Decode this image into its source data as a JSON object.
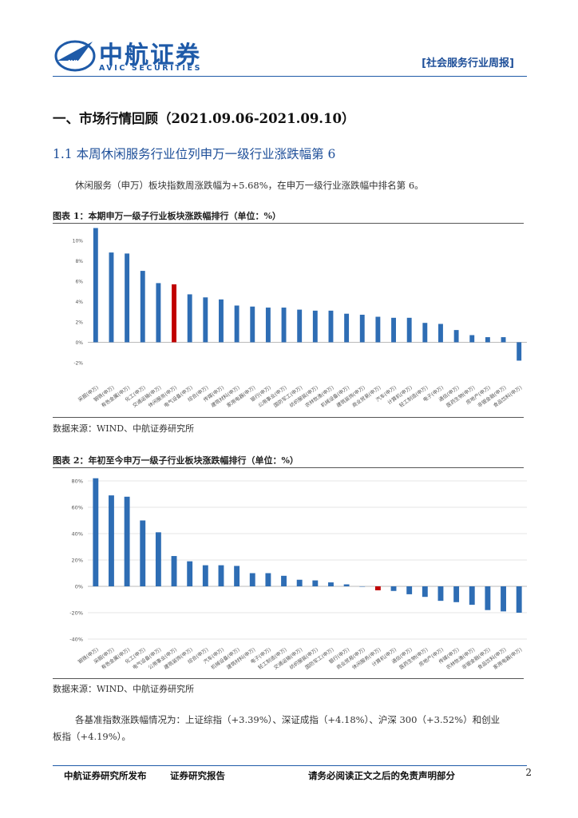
{
  "header": {
    "logo_cn": "中航证券",
    "logo_en": "AVIC SECURITIES",
    "logo_badge": "AVIC",
    "report_tag": "[社会服务行业周报]"
  },
  "section": {
    "title": "一、市场行情回顾（2021.09.06-2021.09.10）",
    "subtitle": "1.1 本周休闲服务行业位列申万一级行业涨跌幅第 6",
    "intro": "休闲服务（申万）板块指数周涨跌幅为+5.68%，在申万一级行业涨跌幅中排名第 6。",
    "closing_line1": "各基准指数涨跌幅情况为：上证综指（+3.39%）、深证成指（+4.18%）、沪深 300（+3.52%）和创业",
    "closing_line2": "板指（+4.19%）。"
  },
  "figures": [
    {
      "title": "图表 1：本期申万一级子行业板块涨跌幅排行（单位：%）",
      "source": "数据来源：WIND、中航证券研究所"
    },
    {
      "title": "图表 2：年初至今申万一级子行业板块涨跌幅排行（单位：%）",
      "source": "数据来源：WIND、中航证券研究所"
    }
  ],
  "footer": {
    "left": "中航证券研究所发布",
    "middle": "证券研究报告",
    "right": "请务必阅读正文之后的免责声明部分",
    "page": "2"
  },
  "colors": {
    "bar": "#2e6db4",
    "highlight": "#c00000",
    "brand": "#1e5aa8"
  },
  "chart_data": [
    {
      "type": "bar",
      "title": "",
      "xlabel": "",
      "ylabel": "",
      "ylim": [
        -2,
        11
      ],
      "yticks": [
        -2,
        0,
        2,
        4,
        6,
        8,
        10
      ],
      "ytick_labels": [
        "-2%",
        "0%",
        "2%",
        "4%",
        "6%",
        "8%",
        "10%"
      ],
      "highlight_index": 5,
      "categories": [
        "采掘(申万)",
        "钢铁(申万)",
        "有色金属(申万)",
        "化工(申万)",
        "交通运输(申万)",
        "休闲服务(申万)",
        "电气设备(申万)",
        "综合(申万)",
        "传媒(申万)",
        "建筑材料(申万)",
        "家用电器(申万)",
        "银行(申万)",
        "公用事业(申万)",
        "国防军工(申万)",
        "纺织服装(申万)",
        "农林牧渔(申万)",
        "机械设备(申万)",
        "建筑装饰(申万)",
        "商业贸易(申万)",
        "汽车(申万)",
        "计算机(申万)",
        "轻工制造(申万)",
        "电子(申万)",
        "通信(申万)",
        "医药生物(申万)",
        "房地产(申万)",
        "非银金融(申万)",
        "食品饮料(申万)"
      ],
      "values": [
        11.2,
        8.8,
        8.7,
        7.0,
        5.8,
        5.68,
        4.7,
        4.4,
        4.2,
        3.6,
        3.5,
        3.4,
        3.4,
        3.2,
        3.1,
        3.1,
        2.8,
        2.7,
        2.5,
        2.4,
        2.4,
        1.9,
        1.8,
        1.2,
        0.7,
        0.5,
        0.5,
        -1.8
      ]
    },
    {
      "type": "bar",
      "title": "",
      "xlabel": "",
      "ylabel": "",
      "ylim": [
        -40,
        80
      ],
      "yticks": [
        -40,
        -20,
        0,
        20,
        40,
        60,
        80
      ],
      "ytick_labels": [
        "-40%",
        "-20%",
        "0%",
        "20%",
        "40%",
        "60%",
        "80%"
      ],
      "highlight_index": 18,
      "categories": [
        "钢铁(申万)",
        "采掘(申万)",
        "有色金属(申万)",
        "化工(申万)",
        "电气设备(申万)",
        "公用事业(申万)",
        "建筑装饰(申万)",
        "综合(申万)",
        "汽车(申万)",
        "机械设备(申万)",
        "建筑材料(申万)",
        "电子(申万)",
        "轻工制造(申万)",
        "交通运输(申万)",
        "纺织服装(申万)",
        "国防军工(申万)",
        "银行(申万)",
        "商业贸易(申万)",
        "休闲服务(申万)",
        "计算机(申万)",
        "通信(申万)",
        "医药生物(申万)",
        "房地产(申万)",
        "传媒(申万)",
        "农林牧渔(申万)",
        "非银金融(申万)",
        "食品饮料(申万)",
        "家用电器(申万)"
      ],
      "values": [
        82,
        69,
        68,
        50,
        41,
        23,
        19,
        16,
        16,
        15.5,
        10,
        10,
        8,
        5,
        4.5,
        3,
        1.5,
        0,
        -3,
        -3.5,
        -6,
        -8,
        -11,
        -12,
        -14,
        -18,
        -19,
        -20
      ]
    }
  ]
}
